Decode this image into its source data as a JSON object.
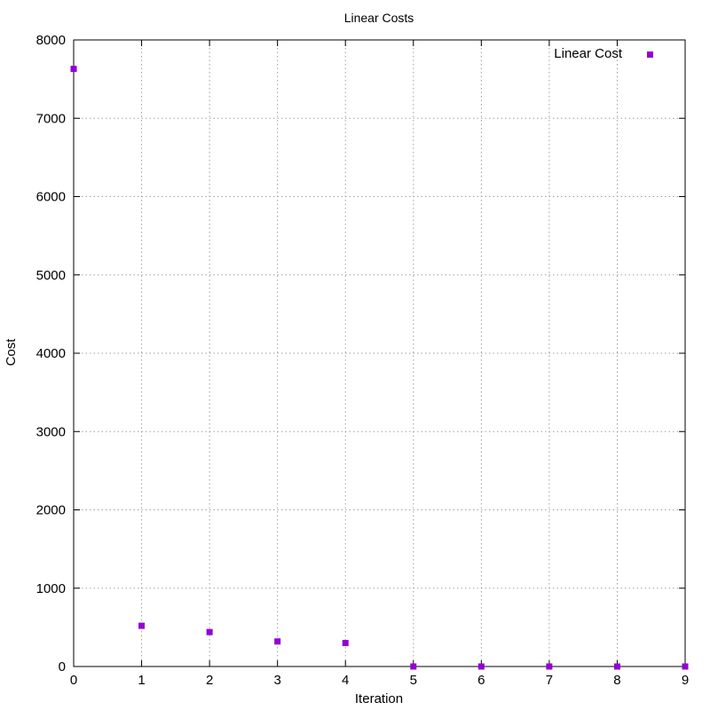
{
  "chart_data": {
    "type": "scatter",
    "title": "Linear Costs",
    "xlabel": "Iteration",
    "ylabel": "Cost",
    "xlim": [
      0,
      9
    ],
    "ylim": [
      0,
      8000
    ],
    "xticks": [
      0,
      1,
      2,
      3,
      4,
      5,
      6,
      7,
      8,
      9
    ],
    "yticks": [
      0,
      1000,
      2000,
      3000,
      4000,
      5000,
      6000,
      7000,
      8000
    ],
    "grid": true,
    "legend_position": "top-right",
    "series": [
      {
        "name": "Linear Cost",
        "color": "#9400d3",
        "marker": "square",
        "x": [
          0,
          1,
          2,
          3,
          4,
          5,
          6,
          7,
          8,
          9
        ],
        "y": [
          7630,
          520,
          440,
          320,
          300,
          0,
          0,
          0,
          0,
          0
        ]
      }
    ]
  }
}
